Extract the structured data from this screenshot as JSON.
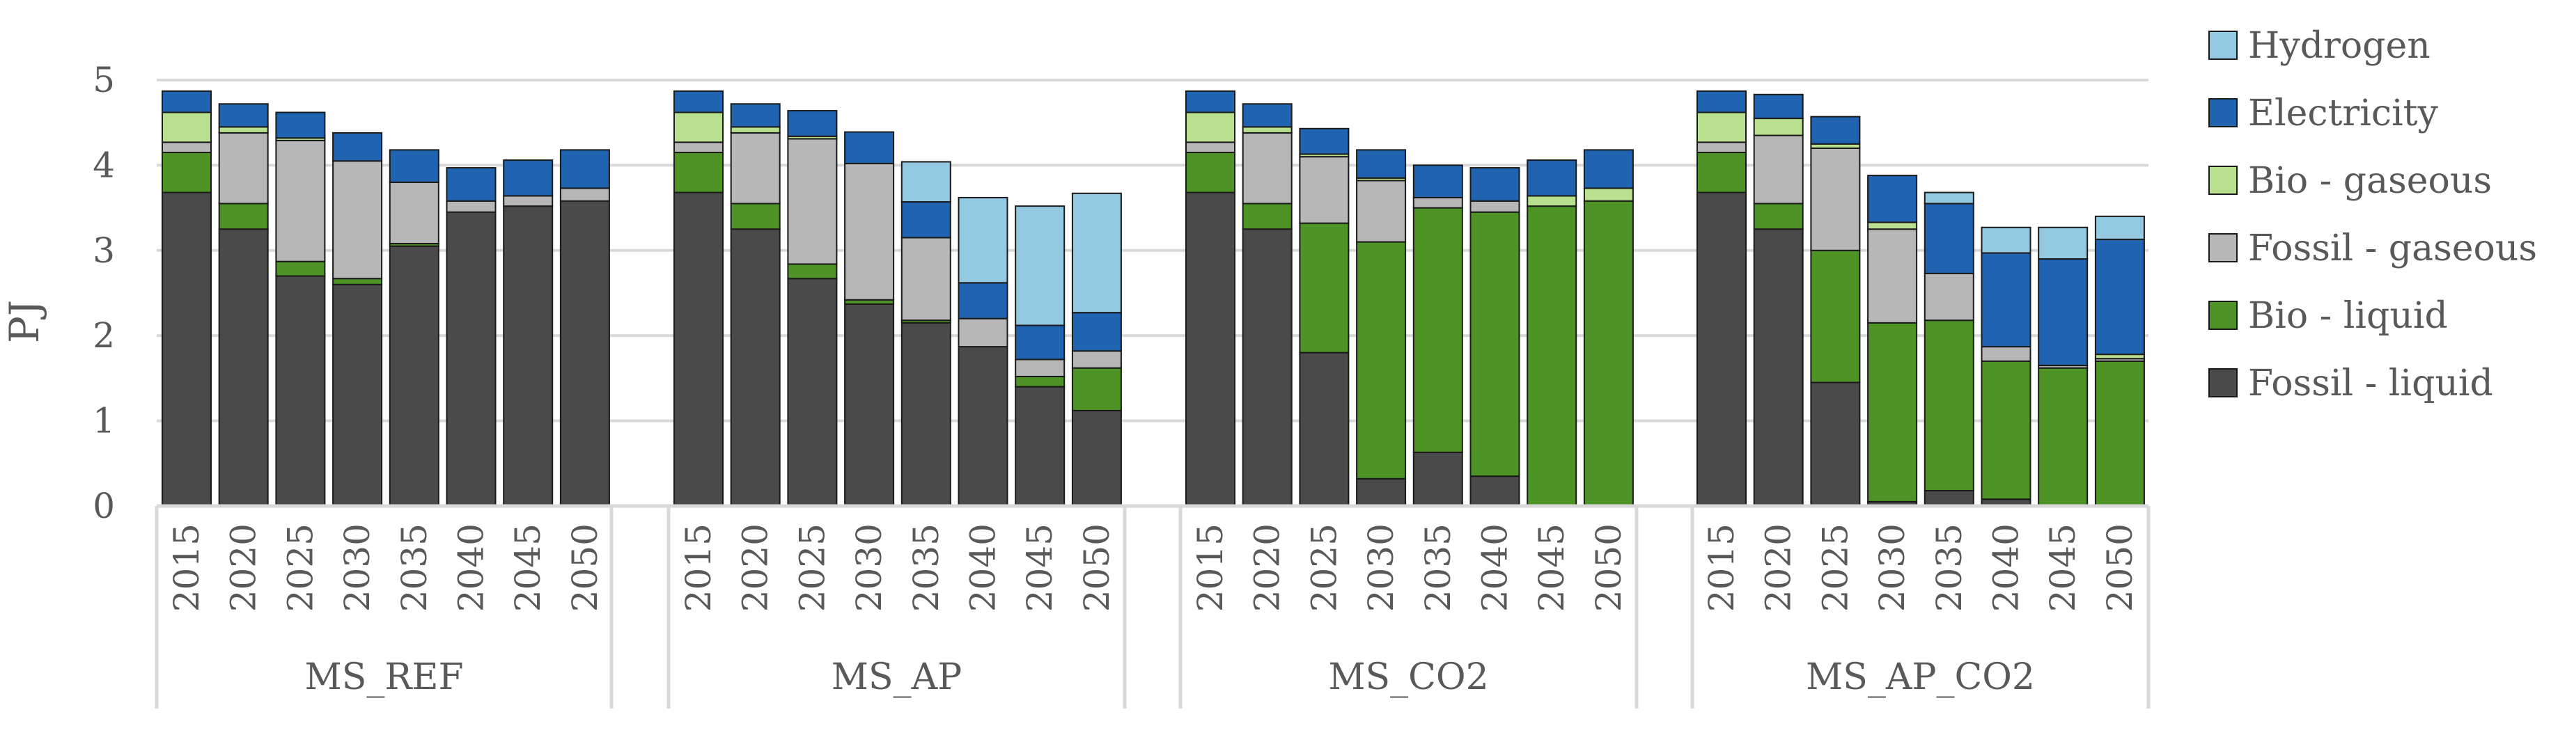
{
  "chart_data": {
    "type": "bar",
    "stacked": true,
    "title": "",
    "xlabel": "",
    "ylabel": "PJ",
    "ylim": [
      0,
      5
    ],
    "yticks": [
      0,
      1,
      2,
      3,
      4,
      5
    ],
    "ytick_labels": [
      "0",
      "1",
      "2",
      "3",
      "4",
      "5"
    ],
    "grid": true,
    "legend_position": "right",
    "years": [
      "2015",
      "2020",
      "2025",
      "2030",
      "2035",
      "2040",
      "2045",
      "2050"
    ],
    "series_order": [
      "Fossil - liquid",
      "Bio - liquid",
      "Fossil - gaseous",
      "Bio - gaseous",
      "Electricity",
      "Hydrogen"
    ],
    "legend_order": [
      "Hydrogen",
      "Electricity",
      "Bio - gaseous",
      "Fossil - gaseous",
      "Bio - liquid",
      "Fossil - liquid"
    ],
    "colors": {
      "Fossil - liquid": "#4a4a4a",
      "Bio - liquid": "#4e9325",
      "Fossil - gaseous": "#b7b7b7",
      "Bio - gaseous": "#b8e08e",
      "Electricity": "#2063b0",
      "Hydrogen": "#94c9e2"
    },
    "groups": [
      {
        "name": "MS_REF",
        "series": [
          {
            "name": "Fossil - liquid",
            "values": [
              3.68,
              3.25,
              2.7,
              2.6,
              3.05,
              3.45,
              3.52,
              3.58
            ]
          },
          {
            "name": "Bio - liquid",
            "values": [
              0.47,
              0.3,
              0.17,
              0.07,
              0.03,
              0.0,
              0.0,
              0.0
            ]
          },
          {
            "name": "Fossil - gaseous",
            "values": [
              0.12,
              0.83,
              1.42,
              1.38,
              0.72,
              0.13,
              0.12,
              0.15
            ]
          },
          {
            "name": "Bio - gaseous",
            "values": [
              0.35,
              0.07,
              0.03,
              0.0,
              0.0,
              0.0,
              0.0,
              0.0
            ]
          },
          {
            "name": "Electricity",
            "values": [
              0.25,
              0.27,
              0.3,
              0.33,
              0.38,
              0.39,
              0.42,
              0.45
            ]
          },
          {
            "name": "Hydrogen",
            "values": [
              0,
              0,
              0,
              0,
              0,
              0,
              0,
              0
            ]
          }
        ]
      },
      {
        "name": "MS_AP",
        "series": [
          {
            "name": "Fossil - liquid",
            "values": [
              3.68,
              3.25,
              2.67,
              2.37,
              2.15,
              1.87,
              1.4,
              1.12
            ]
          },
          {
            "name": "Bio - liquid",
            "values": [
              0.47,
              0.3,
              0.17,
              0.05,
              0.03,
              0.0,
              0.12,
              0.5
            ]
          },
          {
            "name": "Fossil - gaseous",
            "values": [
              0.12,
              0.83,
              1.47,
              1.6,
              0.97,
              0.33,
              0.2,
              0.2
            ]
          },
          {
            "name": "Bio - gaseous",
            "values": [
              0.35,
              0.07,
              0.03,
              0.0,
              0.0,
              0.0,
              0.0,
              0.0
            ]
          },
          {
            "name": "Electricity",
            "values": [
              0.25,
              0.27,
              0.3,
              0.37,
              0.42,
              0.42,
              0.4,
              0.45
            ]
          },
          {
            "name": "Hydrogen",
            "values": [
              0,
              0,
              0,
              0,
              0.47,
              1.0,
              1.4,
              1.4
            ]
          }
        ]
      },
      {
        "name": "MS_CO2",
        "series": [
          {
            "name": "Fossil - liquid",
            "values": [
              3.68,
              3.25,
              1.8,
              0.32,
              0.63,
              0.35,
              0.0,
              0.0
            ]
          },
          {
            "name": "Bio - liquid",
            "values": [
              0.47,
              0.3,
              1.52,
              2.78,
              2.87,
              3.1,
              3.52,
              3.58
            ]
          },
          {
            "name": "Fossil - gaseous",
            "values": [
              0.12,
              0.83,
              0.78,
              0.72,
              0.12,
              0.13,
              0.0,
              0.0
            ]
          },
          {
            "name": "Bio - gaseous",
            "values": [
              0.35,
              0.07,
              0.03,
              0.03,
              0.0,
              0.0,
              0.12,
              0.15
            ]
          },
          {
            "name": "Electricity",
            "values": [
              0.25,
              0.27,
              0.3,
              0.33,
              0.38,
              0.39,
              0.42,
              0.45
            ]
          },
          {
            "name": "Hydrogen",
            "values": [
              0,
              0,
              0,
              0,
              0,
              0,
              0,
              0
            ]
          }
        ]
      },
      {
        "name": "MS_AP_CO2",
        "series": [
          {
            "name": "Fossil - liquid",
            "values": [
              3.68,
              3.25,
              1.45,
              0.05,
              0.18,
              0.08,
              0.0,
              0.0
            ]
          },
          {
            "name": "Bio - liquid",
            "values": [
              0.47,
              0.3,
              1.55,
              2.1,
              2.0,
              1.62,
              1.62,
              1.7
            ]
          },
          {
            "name": "Fossil - gaseous",
            "values": [
              0.12,
              0.8,
              1.2,
              1.1,
              0.55,
              0.17,
              0.03,
              0.03
            ]
          },
          {
            "name": "Bio - gaseous",
            "values": [
              0.35,
              0.2,
              0.05,
              0.08,
              0.0,
              0.0,
              0.0,
              0.05
            ]
          },
          {
            "name": "Electricity",
            "values": [
              0.25,
              0.28,
              0.32,
              0.55,
              0.82,
              1.1,
              1.25,
              1.35
            ]
          },
          {
            "name": "Hydrogen",
            "values": [
              0,
              0,
              0,
              0,
              0.13,
              0.3,
              0.37,
              0.27
            ]
          }
        ]
      }
    ]
  }
}
